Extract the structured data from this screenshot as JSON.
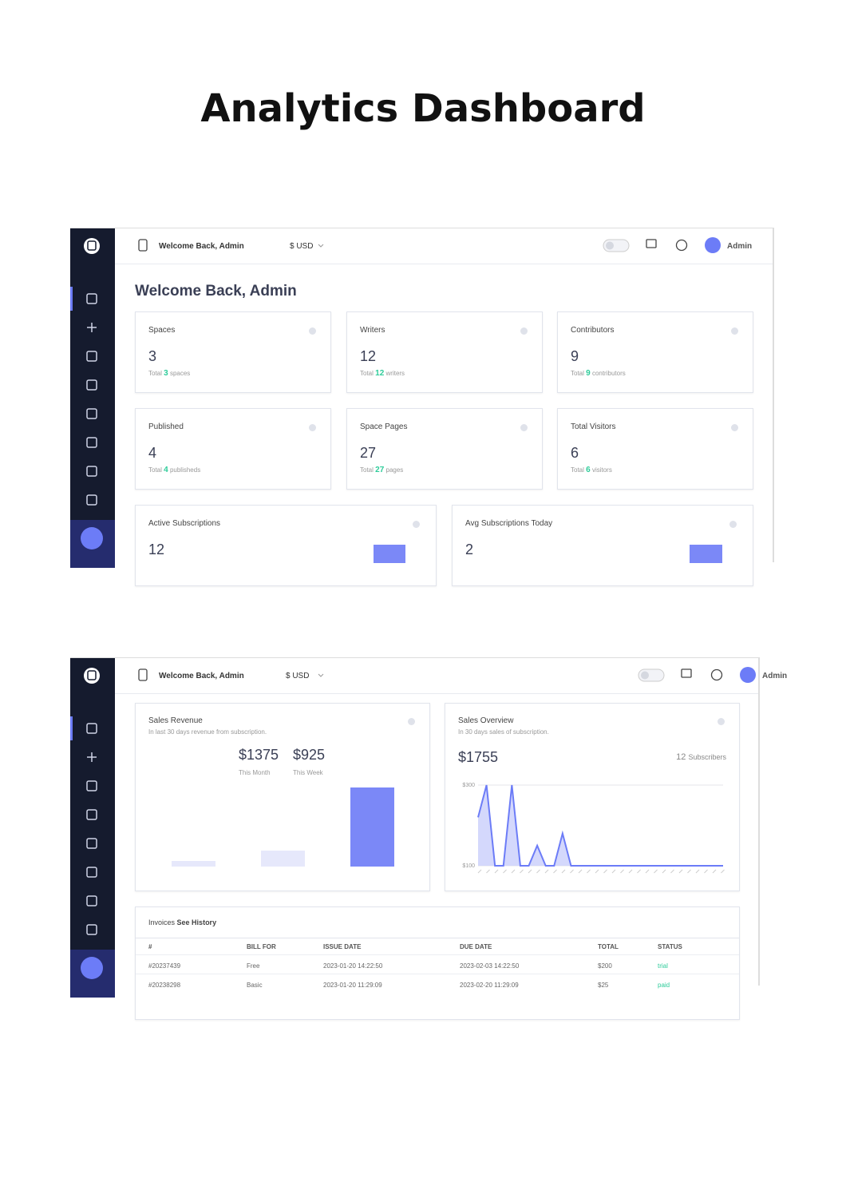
{
  "title": "Analytics Dashboard",
  "topbar": {
    "welcome": "Welcome Back, Admin",
    "currency": "$ USD",
    "user": "Admin"
  },
  "heading": "Welcome Back, Admin",
  "stats": [
    {
      "label": "Spaces",
      "value": 3,
      "total_word": "Total",
      "unit": "spaces"
    },
    {
      "label": "Writers",
      "value": 12,
      "total_word": "Total",
      "unit": "writers"
    },
    {
      "label": "Contributors",
      "value": 9,
      "total_word": "Total",
      "unit": "contributors"
    },
    {
      "label": "Published",
      "value": 4,
      "total_word": "Total",
      "unit": "publisheds"
    },
    {
      "label": "Space Pages",
      "value": 27,
      "total_word": "Total",
      "unit": "pages"
    },
    {
      "label": "Total Visitors",
      "value": 6,
      "total_word": "Total",
      "unit": "visitors"
    }
  ],
  "subscriptions": [
    {
      "label": "Active Subscriptions",
      "value": 12
    },
    {
      "label": "Avg Subscriptions Today",
      "value": 2
    }
  ],
  "sales_revenue": {
    "title": "Sales Revenue",
    "subtitle": "In last 30 days revenue from subscription.",
    "figures": [
      {
        "value": "$1375",
        "label": "This Month"
      },
      {
        "value": "$925",
        "label": "This Week"
      }
    ]
  },
  "sales_overview": {
    "title": "Sales Overview",
    "subtitle": "In 30 days sales of subscription.",
    "total": "$1755",
    "subscribers": 12,
    "subscribers_label": "Subscribers",
    "ylim": [
      100,
      300
    ],
    "yticks": [
      {
        "value": 300,
        "label": "$300"
      },
      {
        "value": 100,
        "label": "$100"
      }
    ],
    "values": [
      220,
      300,
      100,
      100,
      300,
      100,
      100,
      150,
      100,
      100,
      180,
      100,
      100,
      100,
      100,
      100,
      100,
      100,
      100,
      100,
      100,
      100,
      100,
      100,
      100,
      100,
      100,
      100,
      100,
      100
    ]
  },
  "invoices": {
    "title": "Invoices",
    "link": "See History",
    "columns": [
      "#",
      "BILL FOR",
      "ISSUE DATE",
      "DUE DATE",
      "TOTAL",
      "STATUS"
    ],
    "rows": [
      [
        "#20237439",
        "Free",
        "2023-01-20 14:22:50",
        "2023-02-03 14:22:50",
        "$200",
        "trial"
      ],
      [
        "#20238298",
        "Basic",
        "2023-01-20 11:29:09",
        "2023-02-20 11:29:09",
        "$25",
        "paid"
      ]
    ]
  }
}
